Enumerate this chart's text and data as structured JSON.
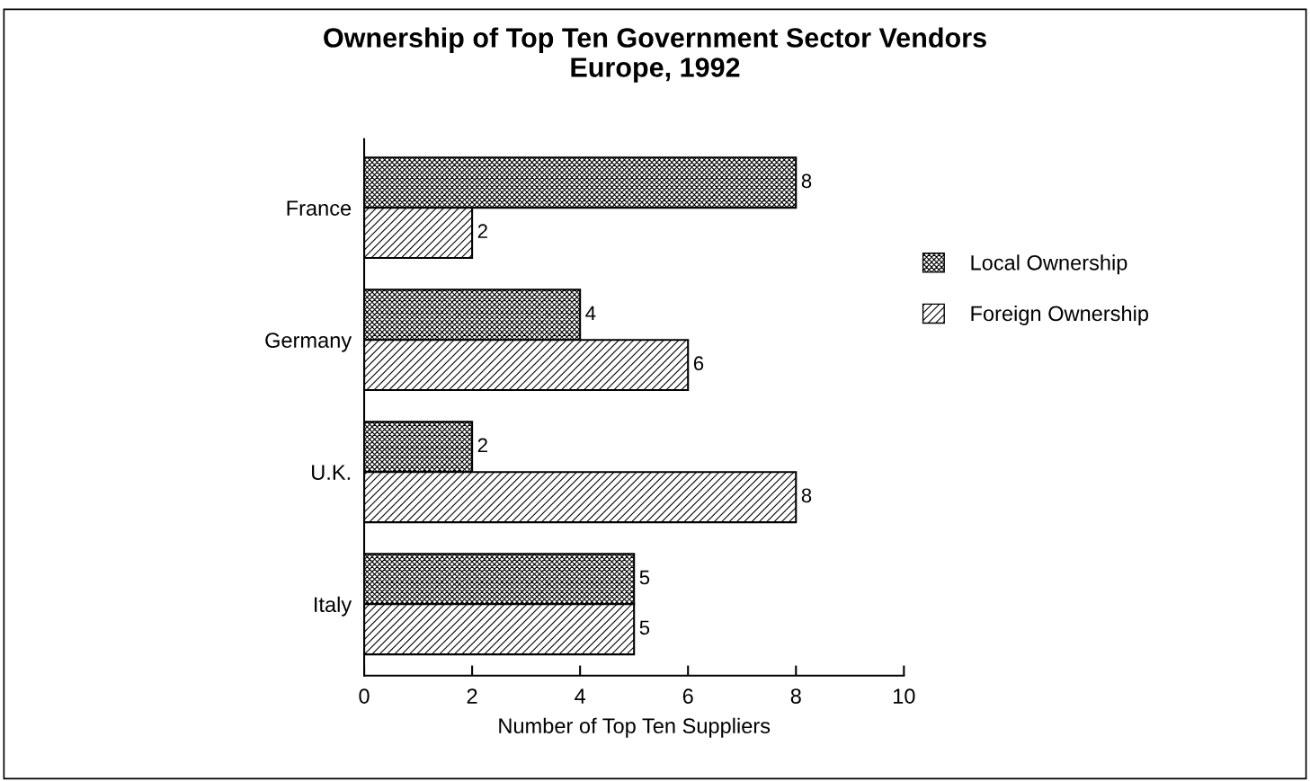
{
  "chart_data": {
    "type": "bar",
    "orientation": "horizontal",
    "title": "Ownership of Top Ten Government Sector Vendors\nEurope, 1992",
    "xlabel": "Number of Top Ten Suppliers",
    "categories": [
      "France",
      "Germany",
      "U.K.",
      "Italy"
    ],
    "series": [
      {
        "name": "Local Ownership",
        "color": "#000000",
        "values": [
          8,
          4,
          2,
          5
        ]
      },
      {
        "name": "Foreign Ownership",
        "color": "#000000",
        "values": [
          2,
          6,
          8,
          5
        ]
      }
    ],
    "xlim": [
      0,
      10
    ],
    "xticks": [
      0,
      2,
      4,
      6,
      8,
      10
    ],
    "data_labels": true,
    "legend": "right",
    "grid": false
  }
}
